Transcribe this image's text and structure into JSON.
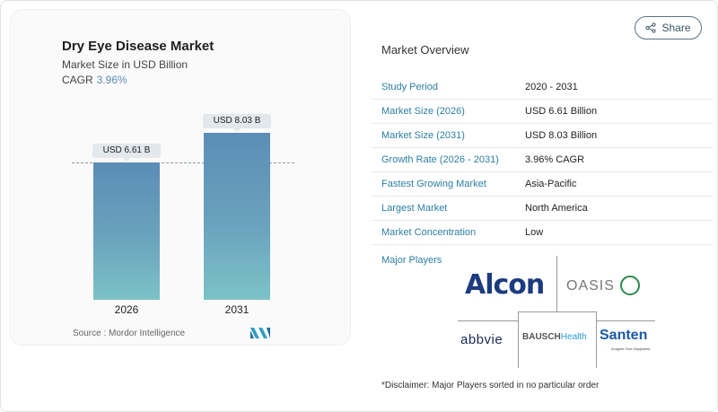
{
  "chart_card": {
    "title": "Dry Eye Disease Market",
    "subtitle": "Market Size in USD Billion",
    "cagr_label": "CAGR",
    "cagr_value": "3.96%",
    "source": "Source :  Mordor Intelligence",
    "logo_icon": "mordor-intelligence-logo-icon"
  },
  "chart_data": {
    "type": "bar",
    "title": "Dry Eye Disease Market",
    "subtitle": "Market Size in USD Billion",
    "categories": [
      "2026",
      "2031"
    ],
    "values": [
      6.61,
      8.03
    ],
    "data_labels": [
      "USD 6.61 B",
      "USD 8.03 B"
    ],
    "xlabel": "",
    "ylabel": "Market Size in USD Billion",
    "ylim": [
      0,
      8.5
    ],
    "grid": false,
    "reference_line": {
      "value": 6.61,
      "style": "dashed"
    },
    "annotations": [
      "CAGR 3.96%"
    ],
    "colors": {
      "bar_top": "#5b8db6",
      "bar_bottom": "#7cc2c8"
    }
  },
  "share_button": {
    "label": "Share",
    "icon": "share-icon"
  },
  "overview": {
    "title": "Market Overview",
    "rows": [
      {
        "key": "Study Period",
        "value": "2020 - 2031"
      },
      {
        "key": "Market Size (2026)",
        "value": "USD 6.61 Billion"
      },
      {
        "key": "Market Size (2031)",
        "value": "USD 8.03 Billion"
      },
      {
        "key": "Growth Rate (2026 - 2031)",
        "value": "3.96% CAGR"
      },
      {
        "key": "Fastest Growing Market",
        "value": "Asia-Pacific"
      },
      {
        "key": "Largest Market",
        "value": "North America"
      },
      {
        "key": "Market Concentration",
        "value": "Low"
      }
    ]
  },
  "major_players": {
    "title": "Major Players",
    "players": [
      {
        "name": "Alcon"
      },
      {
        "name": "OASIS"
      },
      {
        "name": "abbvie"
      },
      {
        "name_part1": "BAUSCH",
        "name_part2": "Health"
      },
      {
        "name": "Santen",
        "tagline": "Imagine Your Happiness"
      }
    ]
  },
  "disclaimer": "*Disclaimer: Major Players sorted in no particular order",
  "colors": {
    "accent_key": "#2b7ea3",
    "cagr": "#5a8db5"
  }
}
